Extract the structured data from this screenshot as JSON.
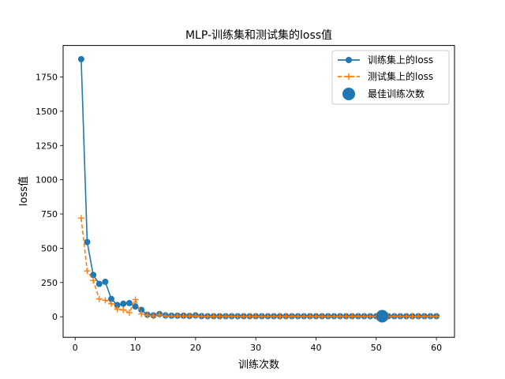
{
  "chart_data": {
    "type": "line",
    "title": "MLP-训练集和测试集的loss值",
    "xlabel": "训练次数",
    "ylabel": "loss值",
    "xlim": [
      -2,
      63
    ],
    "ylim": [
      -150,
      1980
    ],
    "x_ticks": [
      0,
      10,
      20,
      30,
      40,
      50,
      60
    ],
    "y_ticks": [
      0,
      250,
      500,
      750,
      1000,
      1250,
      1500,
      1750
    ],
    "x": [
      1,
      2,
      3,
      4,
      5,
      6,
      7,
      8,
      9,
      10,
      11,
      12,
      13,
      14,
      15,
      16,
      17,
      18,
      19,
      20,
      21,
      22,
      23,
      24,
      25,
      26,
      27,
      28,
      29,
      30,
      31,
      32,
      33,
      34,
      35,
      36,
      37,
      38,
      39,
      40,
      41,
      42,
      43,
      44,
      45,
      46,
      47,
      48,
      49,
      50,
      51,
      52,
      53,
      54,
      55,
      56,
      57,
      58,
      59,
      60
    ],
    "series": [
      {
        "name": "训练集上的loss",
        "color": "#1f77b4",
        "style": "solid",
        "marker": "circle",
        "values": [
          1880,
          545,
          305,
          240,
          255,
          130,
          85,
          95,
          100,
          75,
          50,
          15,
          10,
          20,
          10,
          8,
          8,
          8,
          6,
          10,
          5,
          4,
          4,
          4,
          4,
          4,
          4,
          4,
          4,
          4,
          4,
          4,
          4,
          4,
          4,
          4,
          4,
          4,
          4,
          4,
          4,
          4,
          4,
          4,
          4,
          4,
          4,
          4,
          4,
          4,
          4,
          4,
          4,
          4,
          4,
          4,
          4,
          4,
          4,
          4
        ]
      },
      {
        "name": "测试集上的loss",
        "color": "#ff7f0e",
        "style": "dashed",
        "marker": "plus",
        "values": [
          720,
          335,
          265,
          130,
          120,
          95,
          55,
          50,
          30,
          125,
          20,
          10,
          5,
          15,
          5,
          5,
          5,
          5,
          5,
          5,
          3,
          3,
          3,
          3,
          3,
          3,
          3,
          3,
          3,
          3,
          3,
          3,
          3,
          3,
          3,
          3,
          3,
          3,
          3,
          3,
          3,
          3,
          3,
          3,
          3,
          3,
          3,
          3,
          3,
          3,
          3,
          3,
          3,
          3,
          3,
          3,
          3,
          3,
          3,
          3
        ]
      },
      {
        "name": "最佳训练次数",
        "color": "#1f77b4",
        "style": "none",
        "marker": "big-circle",
        "x": [
          51
        ],
        "values": [
          4
        ]
      }
    ],
    "legend_position": "top-right",
    "grid": false
  }
}
